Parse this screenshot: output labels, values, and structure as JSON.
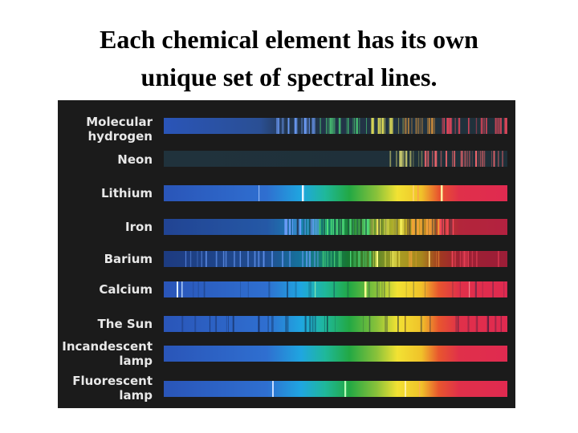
{
  "title": {
    "line1": "Each chemical element has its own",
    "line2": "unique set of spectral lines."
  },
  "spectra": [
    {
      "id": "hydrogen",
      "label": [
        "Molecular",
        "hydrogen"
      ]
    },
    {
      "id": "neon",
      "label": [
        "Neon"
      ]
    },
    {
      "id": "lithium",
      "label": [
        "Lithium"
      ]
    },
    {
      "id": "iron",
      "label": [
        "Iron"
      ]
    },
    {
      "id": "barium",
      "label": [
        "Barium"
      ]
    },
    {
      "id": "calcium",
      "label": [
        "Calcium"
      ]
    },
    {
      "id": "sun",
      "label": [
        "The Sun"
      ]
    },
    {
      "id": "incandescent",
      "label": [
        "Incandescent",
        "lamp"
      ]
    },
    {
      "id": "fluorescent",
      "label": [
        "Fluorescent",
        "lamp"
      ]
    }
  ],
  "colors": {
    "background": "#ffffff",
    "panel": "#1b1b1b",
    "label_text": "#e8e8e8"
  }
}
